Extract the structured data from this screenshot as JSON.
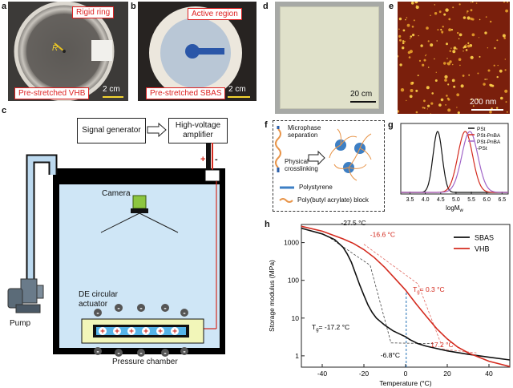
{
  "panels": {
    "a": {
      "label": "a",
      "rigid_ring": "Rigid ring",
      "r_label": "R",
      "pre_stretched": "Pre-stretched VHB",
      "scale": "2 cm"
    },
    "b": {
      "label": "b",
      "active_region": "Active region",
      "pre_stretched": "Pre-stretched SBAS",
      "scale": "2 cm"
    },
    "c": {
      "label": "c",
      "signal_generator": "Signal generator",
      "amplifier": "High-voltage amplifier",
      "camera": "Camera",
      "pump": "Pump",
      "actuator": "DE circular actuator",
      "chamber": "Pressure chamber",
      "plus": "+",
      "minus": "-"
    },
    "d": {
      "label": "d",
      "scale": "20 cm"
    },
    "e": {
      "label": "e",
      "scale": "200 nm"
    },
    "f": {
      "label": "f",
      "microphase": "Microphase separation",
      "physical": "Physical crosslinking",
      "polystyrene": "Polystyrene",
      "pba_block": "Poly(butyl acrylate) block"
    },
    "g": {
      "label": "g"
    },
    "h": {
      "label": "h"
    }
  },
  "colors": {
    "red": "#d42b1f",
    "black": "#111111",
    "blue": "#1f6fb5",
    "chamber": "#cfe6f6",
    "pipe": "#bcd9ef",
    "violet": "#a166c8"
  },
  "chart_data": [
    {
      "id": "g",
      "type": "line",
      "title": "",
      "xlabel": "logM_w",
      "xlabel_main": "logM",
      "xlabel_sub": "w",
      "ylabel": "",
      "xlim": [
        3.2,
        6.7
      ],
      "xticks": [
        "3.5",
        "4.0",
        "4.5",
        "5.0",
        "5.5",
        "6.0",
        "6.5"
      ],
      "legend": [
        "PSt",
        "PSt-PnBA",
        "PSt-PnBA -PSt"
      ],
      "legend_lines": [
        "PSt",
        "PSt-PnBA",
        "PSt-PnBA",
        "-PSt"
      ],
      "series": [
        {
          "name": "PSt",
          "center": 4.4,
          "sigma": 0.15,
          "color": "#111111"
        },
        {
          "name": "PSt-PnBA",
          "center": 5.3,
          "sigma": 0.24,
          "color": "#d42b1f"
        },
        {
          "name": "PSt-PnBA-PSt",
          "center": 5.45,
          "sigma": 0.26,
          "color": "#a166c8"
        }
      ]
    },
    {
      "id": "h",
      "type": "line",
      "title": "",
      "xlabel": "Temperature (°C)",
      "ylabel": "Storage modulus (MPa)",
      "xlim": [
        -50,
        50
      ],
      "ylim_log10": [
        -0.3,
        3.48
      ],
      "xticks": [
        -40,
        -20,
        0,
        20,
        40
      ],
      "yticks": [
        "1",
        "10",
        "100",
        "1000"
      ],
      "legend": [
        "SBAS",
        "VHB"
      ],
      "annotations": [
        "-27.5 °C",
        "-16.6 °C",
        "T_g= -17.2 °C",
        "T_g= 0.3 °C",
        "17.2 °C",
        "-6.8°C"
      ],
      "series": [
        {
          "name": "SBAS",
          "color": "#111111",
          "x": [
            -50,
            -40,
            -34,
            -30,
            -28,
            -26,
            -24,
            -22,
            -20,
            -18,
            -16,
            -14,
            -12,
            -10,
            -6,
            -2,
            0,
            2,
            6,
            10,
            20,
            30,
            40,
            50
          ],
          "y": [
            2400,
            1700,
            1200,
            750,
            500,
            300,
            150,
            75,
            40,
            22,
            14,
            10,
            8,
            6.5,
            4.6,
            3.6,
            3.2,
            2.7,
            2.1,
            1.8,
            1.35,
            1.1,
            0.92,
            0.78
          ]
        },
        {
          "name": "VHB",
          "color": "#d42b1f",
          "x": [
            -50,
            -40,
            -30,
            -25,
            -20,
            -15,
            -10,
            -5,
            0,
            5,
            10,
            15,
            20,
            25,
            30,
            40,
            50
          ],
          "y": [
            2700,
            2000,
            1250,
            950,
            650,
            400,
            220,
            110,
            55,
            24,
            11,
            5.2,
            2.8,
            1.7,
            1.2,
            0.72,
            0.52
          ]
        }
      ]
    }
  ]
}
